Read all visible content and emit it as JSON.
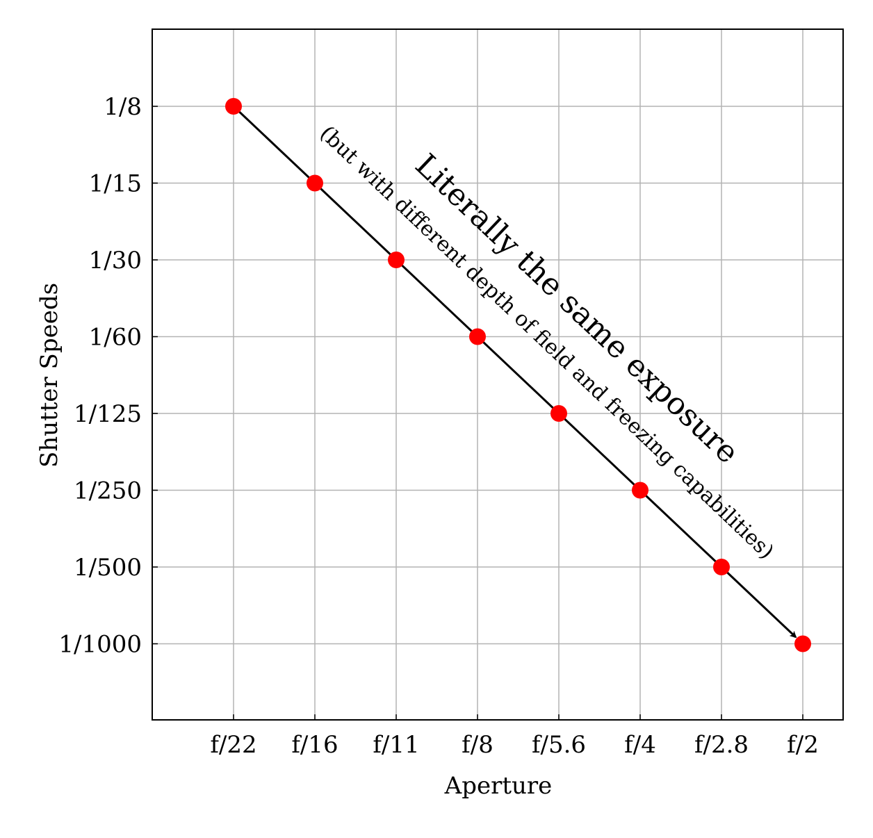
{
  "chart_data": {
    "type": "line",
    "title": "",
    "xlabel": "Aperture",
    "ylabel": "Shutter Speeds",
    "x_categories": [
      "f/22",
      "f/16",
      "f/11",
      "f/8",
      "f/5.6",
      "f/4",
      "f/2.8",
      "f/2"
    ],
    "y_categories": [
      "1/8",
      "1/15",
      "1/30",
      "1/60",
      "1/125",
      "1/250",
      "1/500",
      "1/1000"
    ],
    "points": [
      {
        "x": "f/22",
        "y": "1/8"
      },
      {
        "x": "f/16",
        "y": "1/15"
      },
      {
        "x": "f/11",
        "y": "1/30"
      },
      {
        "x": "f/8",
        "y": "1/60"
      },
      {
        "x": "f/5.6",
        "y": "1/125"
      },
      {
        "x": "f/4",
        "y": "1/250"
      },
      {
        "x": "f/2.8",
        "y": "1/500"
      },
      {
        "x": "f/2",
        "y": "1/1000"
      }
    ],
    "grid": true,
    "arrow": true,
    "annotations": [
      "Literally the same exposure",
      "(but with different depth of field and freezing capabilities)"
    ],
    "colors": {
      "marker": "#ff0000",
      "line": "#000000",
      "grid": "#b3b3b3",
      "frame": "#000000"
    }
  }
}
